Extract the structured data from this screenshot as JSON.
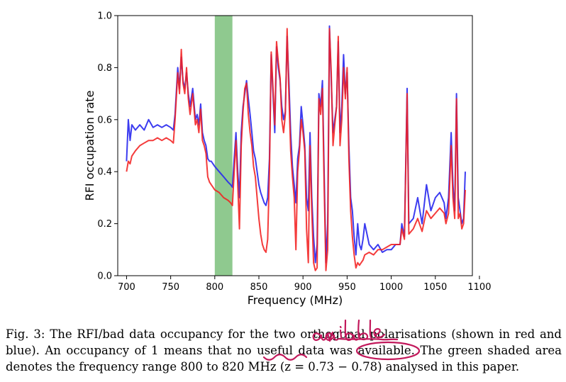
{
  "chart_data": {
    "type": "line",
    "title": "",
    "xlabel": "Frequency (MHz)",
    "ylabel": "RFI occupation rate",
    "xlim": [
      690,
      1092
    ],
    "ylim": [
      0.0,
      1.0
    ],
    "xticks": [
      "700",
      "750",
      "800",
      "850",
      "900",
      "950",
      "1000",
      "1050",
      "1100"
    ],
    "yticks": [
      "0.0",
      "0.2",
      "0.4",
      "0.6",
      "0.8",
      "1.0"
    ],
    "grid": false,
    "legend": "none",
    "shaded_region": {
      "x0": 800,
      "x1": 820,
      "color": "#8fc98f"
    },
    "series": [
      {
        "color": "#2b2bef",
        "x": [
          700,
          702,
          704,
          706,
          710,
          715,
          720,
          725,
          730,
          735,
          740,
          745,
          750,
          753,
          755,
          758,
          760,
          762,
          764,
          766,
          768,
          770,
          772,
          775,
          778,
          780,
          782,
          784,
          786,
          788,
          790,
          792,
          794,
          796,
          798,
          800,
          805,
          810,
          815,
          818,
          820,
          822,
          824,
          826,
          828,
          830,
          832,
          834,
          836,
          838,
          840,
          842,
          844,
          846,
          848,
          850,
          852,
          854,
          856,
          858,
          860,
          862,
          864,
          866,
          868,
          870,
          872,
          874,
          876,
          878,
          880,
          882,
          884,
          886,
          888,
          890,
          892,
          894,
          896,
          898,
          900,
          902,
          904,
          906,
          908,
          910,
          912,
          914,
          916,
          918,
          920,
          922,
          924,
          926,
          928,
          930,
          932,
          934,
          936,
          938,
          940,
          942,
          944,
          946,
          948,
          950,
          952,
          954,
          956,
          958,
          960,
          962,
          964,
          966,
          968,
          970,
          975,
          980,
          985,
          990,
          995,
          1000,
          1005,
          1010,
          1012,
          1015,
          1018,
          1020,
          1025,
          1030,
          1035,
          1040,
          1045,
          1050,
          1055,
          1060,
          1062,
          1065,
          1068,
          1070,
          1072,
          1074,
          1076,
          1078,
          1080,
          1082,
          1084
        ],
        "values": [
          0.44,
          0.6,
          0.52,
          0.58,
          0.56,
          0.58,
          0.56,
          0.6,
          0.57,
          0.58,
          0.57,
          0.58,
          0.57,
          0.56,
          0.62,
          0.8,
          0.72,
          0.84,
          0.75,
          0.72,
          0.78,
          0.7,
          0.65,
          0.72,
          0.6,
          0.62,
          0.58,
          0.66,
          0.55,
          0.52,
          0.5,
          0.45,
          0.44,
          0.44,
          0.43,
          0.42,
          0.4,
          0.38,
          0.36,
          0.35,
          0.34,
          0.45,
          0.55,
          0.4,
          0.3,
          0.55,
          0.65,
          0.7,
          0.75,
          0.68,
          0.62,
          0.55,
          0.48,
          0.45,
          0.4,
          0.35,
          0.32,
          0.3,
          0.28,
          0.27,
          0.3,
          0.45,
          0.85,
          0.7,
          0.55,
          0.88,
          0.8,
          0.75,
          0.65,
          0.6,
          0.63,
          0.92,
          0.75,
          0.55,
          0.42,
          0.35,
          0.28,
          0.45,
          0.5,
          0.65,
          0.58,
          0.5,
          0.3,
          0.25,
          0.55,
          0.3,
          0.15,
          0.05,
          0.12,
          0.7,
          0.65,
          0.75,
          0.4,
          0.05,
          0.2,
          0.96,
          0.75,
          0.55,
          0.6,
          0.65,
          0.9,
          0.55,
          0.65,
          0.85,
          0.7,
          0.78,
          0.5,
          0.3,
          0.25,
          0.15,
          0.08,
          0.2,
          0.12,
          0.1,
          0.14,
          0.2,
          0.12,
          0.1,
          0.12,
          0.09,
          0.1,
          0.1,
          0.12,
          0.12,
          0.2,
          0.15,
          0.72,
          0.2,
          0.22,
          0.3,
          0.2,
          0.35,
          0.25,
          0.3,
          0.32,
          0.28,
          0.22,
          0.3,
          0.55,
          0.35,
          0.25,
          0.7,
          0.3,
          0.25,
          0.2,
          0.22,
          0.4
        ]
      },
      {
        "color": "#f22020",
        "x": [
          700,
          702,
          704,
          706,
          710,
          715,
          720,
          725,
          730,
          735,
          740,
          745,
          750,
          753,
          755,
          758,
          760,
          762,
          764,
          766,
          768,
          770,
          772,
          775,
          778,
          780,
          782,
          784,
          786,
          788,
          790,
          792,
          794,
          796,
          798,
          800,
          805,
          810,
          815,
          818,
          820,
          822,
          824,
          826,
          828,
          830,
          832,
          834,
          836,
          838,
          840,
          842,
          844,
          846,
          848,
          850,
          852,
          854,
          856,
          858,
          860,
          862,
          864,
          866,
          868,
          870,
          872,
          874,
          876,
          878,
          880,
          882,
          884,
          886,
          888,
          890,
          892,
          894,
          896,
          898,
          900,
          902,
          904,
          906,
          908,
          910,
          912,
          914,
          916,
          918,
          920,
          922,
          924,
          926,
          928,
          930,
          932,
          934,
          936,
          938,
          940,
          942,
          944,
          946,
          948,
          950,
          952,
          954,
          956,
          958,
          960,
          962,
          964,
          966,
          968,
          970,
          975,
          980,
          985,
          990,
          995,
          1000,
          1005,
          1010,
          1012,
          1015,
          1018,
          1020,
          1025,
          1030,
          1035,
          1040,
          1045,
          1050,
          1055,
          1060,
          1062,
          1065,
          1068,
          1070,
          1072,
          1074,
          1076,
          1078,
          1080,
          1082,
          1084
        ],
        "values": [
          0.4,
          0.44,
          0.43,
          0.46,
          0.48,
          0.5,
          0.51,
          0.52,
          0.52,
          0.53,
          0.52,
          0.53,
          0.52,
          0.51,
          0.6,
          0.78,
          0.7,
          0.87,
          0.74,
          0.7,
          0.8,
          0.68,
          0.62,
          0.7,
          0.58,
          0.6,
          0.55,
          0.64,
          0.52,
          0.5,
          0.47,
          0.38,
          0.36,
          0.35,
          0.34,
          0.33,
          0.32,
          0.3,
          0.29,
          0.28,
          0.27,
          0.4,
          0.52,
          0.35,
          0.18,
          0.5,
          0.63,
          0.72,
          0.74,
          0.62,
          0.55,
          0.5,
          0.42,
          0.38,
          0.3,
          0.22,
          0.16,
          0.12,
          0.1,
          0.09,
          0.14,
          0.4,
          0.86,
          0.72,
          0.58,
          0.9,
          0.82,
          0.76,
          0.6,
          0.55,
          0.62,
          0.95,
          0.7,
          0.48,
          0.38,
          0.3,
          0.1,
          0.4,
          0.48,
          0.6,
          0.55,
          0.48,
          0.18,
          0.05,
          0.5,
          0.25,
          0.05,
          0.02,
          0.03,
          0.68,
          0.62,
          0.72,
          0.35,
          0.02,
          0.1,
          0.95,
          0.78,
          0.5,
          0.58,
          0.65,
          0.92,
          0.5,
          0.6,
          0.8,
          0.68,
          0.8,
          0.45,
          0.25,
          0.15,
          0.08,
          0.03,
          0.05,
          0.04,
          0.05,
          0.06,
          0.08,
          0.09,
          0.08,
          0.1,
          0.1,
          0.11,
          0.12,
          0.12,
          0.12,
          0.18,
          0.14,
          0.7,
          0.16,
          0.18,
          0.22,
          0.17,
          0.25,
          0.22,
          0.24,
          0.26,
          0.24,
          0.2,
          0.24,
          0.5,
          0.3,
          0.22,
          0.68,
          0.22,
          0.24,
          0.18,
          0.2,
          0.33
        ]
      }
    ]
  },
  "caption": {
    "prefix": "Fig. 3: ",
    "text": "The RFI/bad data occupancy for the two orthogonal polarisations (shown in red and blue). An occupancy of 1 means that no useful data was available. The green shaded area denotes the frequency range 800 to 820 MHz (z = 0.73 − 0.78) analysed in this paper."
  },
  "annotation": {
    "text": "available",
    "color": "#c2185b"
  }
}
